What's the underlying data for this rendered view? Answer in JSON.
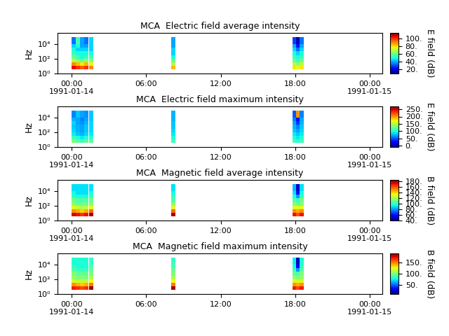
{
  "chart_data": [
    {
      "type": "heatmap",
      "title": "MCA  Electric field average intensity",
      "y_label": "Hz",
      "x": [
        "1991-01-14T00:00",
        "1991-01-14T00:20",
        "1991-01-14T00:40",
        "1991-01-14T01:00",
        "1991-01-14T01:20",
        "1991-01-14T01:25",
        "1991-01-14T01:45",
        "1991-01-14T08:00",
        "1991-01-14T08:20",
        "1991-01-14T17:45",
        "1991-01-14T18:05",
        "1991-01-14T18:20",
        "1991-01-14T18:40"
      ],
      "y": [
        4,
        10,
        32,
        100,
        316,
        1000,
        3162,
        10000,
        80000
      ],
      "xlim": [
        "1991-01-13T22:52",
        "1991-01-15T01:00"
      ],
      "xticks": [
        {
          "value": "1991-01-14T00:00",
          "label": "00:00\n1991-01-14"
        },
        {
          "value": "1991-01-14T06:00",
          "label": "06:00"
        },
        {
          "value": "1991-01-14T12:00",
          "label": "12:00"
        },
        {
          "value": "1991-01-14T18:00",
          "label": "18:00"
        },
        {
          "value": "1991-01-15T00:00",
          "label": "00:00\n1991-01-15"
        }
      ],
      "ylim": [
        1,
        300000
      ],
      "log": "y",
      "yticks": [
        {
          "value": 1,
          "label": "10⁰"
        },
        {
          "value": 100,
          "label": "10²"
        },
        {
          "value": 10000,
          "label": "10⁴"
        }
      ],
      "cells": [
        [
          105,
          100,
          95,
          100,
          null,
          90,
          null,
          85,
          null,
          80,
          75,
          80
        ],
        [
          90,
          85,
          80,
          85,
          null,
          75,
          null,
          70,
          null,
          70,
          65,
          70
        ],
        [
          70,
          65,
          60,
          65,
          null,
          65,
          null,
          60,
          null,
          60,
          55,
          60
        ],
        [
          60,
          55,
          50,
          55,
          null,
          55,
          null,
          50,
          null,
          55,
          50,
          55
        ],
        [
          55,
          50,
          50,
          50,
          null,
          50,
          null,
          45,
          null,
          50,
          45,
          50
        ],
        [
          50,
          45,
          45,
          45,
          null,
          45,
          null,
          45,
          null,
          45,
          35,
          45
        ],
        [
          45,
          50,
          40,
          40,
          null,
          45,
          null,
          40,
          null,
          40,
          25,
          40
        ],
        [
          35,
          55,
          40,
          35,
          null,
          45,
          null,
          40,
          null,
          30,
          15,
          35
        ]
      ],
      "colorbar_range": [
        10,
        115
      ],
      "colorbar_ticks": [
        {
          "value": 20,
          "label": "20."
        },
        {
          "value": 40,
          "label": "40."
        },
        {
          "value": 60,
          "label": "60."
        },
        {
          "value": 80,
          "label": "80."
        },
        {
          "value": 100,
          "label": "100."
        }
      ],
      "colorbar_label": "E field (dB)"
    },
    {
      "type": "heatmap",
      "title": "MCA  Electric field maximum intensity",
      "y_label": "Hz",
      "x": [
        "1991-01-14T00:00",
        "1991-01-14T00:20",
        "1991-01-14T00:40",
        "1991-01-14T01:00",
        "1991-01-14T01:20",
        "1991-01-14T01:25",
        "1991-01-14T01:45",
        "1991-01-14T08:00",
        "1991-01-14T08:20",
        "1991-01-14T17:45",
        "1991-01-14T18:05",
        "1991-01-14T18:20",
        "1991-01-14T18:40"
      ],
      "y": [
        4,
        10,
        32,
        100,
        316,
        1000,
        3162,
        10000,
        80000
      ],
      "xlim": [
        "1991-01-13T22:52",
        "1991-01-15T01:00"
      ],
      "xticks": [
        {
          "value": "1991-01-14T00:00",
          "label": "00:00\n1991-01-14"
        },
        {
          "value": "1991-01-14T06:00",
          "label": "06:00"
        },
        {
          "value": "1991-01-14T12:00",
          "label": "12:00"
        },
        {
          "value": "1991-01-14T18:00",
          "label": "18:00"
        },
        {
          "value": "1991-01-15T00:00",
          "label": "00:00\n1991-01-15"
        }
      ],
      "ylim": [
        1,
        300000
      ],
      "log": "y",
      "yticks": [
        {
          "value": 1,
          "label": "10⁰"
        },
        {
          "value": 100,
          "label": "10²"
        },
        {
          "value": 10000,
          "label": "10⁴"
        }
      ],
      "cells": [
        [
          130,
          120,
          110,
          120,
          null,
          120,
          null,
          110,
          null,
          110,
          100,
          110
        ],
        [
          110,
          100,
          90,
          100,
          null,
          100,
          null,
          100,
          null,
          100,
          90,
          100
        ],
        [
          90,
          80,
          75,
          85,
          null,
          90,
          null,
          90,
          null,
          90,
          80,
          90
        ],
        [
          85,
          75,
          70,
          80,
          null,
          85,
          null,
          85,
          null,
          80,
          70,
          85
        ],
        [
          80,
          75,
          70,
          80,
          null,
          85,
          null,
          80,
          null,
          75,
          60,
          80
        ],
        [
          85,
          70,
          65,
          75,
          null,
          85,
          null,
          80,
          null,
          70,
          40,
          75
        ],
        [
          75,
          70,
          60,
          70,
          null,
          80,
          null,
          75,
          null,
          60,
          30,
          70
        ],
        [
          60,
          80,
          70,
          65,
          null,
          80,
          null,
          75,
          null,
          50,
          200,
          60
        ]
      ],
      "colorbar_range": [
        -10,
        270
      ],
      "colorbar_ticks": [
        {
          "value": 0,
          "label": "0."
        },
        {
          "value": 50,
          "label": "50."
        },
        {
          "value": 100,
          "label": "100."
        },
        {
          "value": 150,
          "label": "150."
        },
        {
          "value": 200,
          "label": "200."
        },
        {
          "value": 250,
          "label": "250."
        }
      ],
      "colorbar_label": "E field (dB)"
    },
    {
      "type": "heatmap",
      "title": "MCA  Magnetic field average intensity",
      "y_label": "Hz",
      "x": [
        "1991-01-14T00:00",
        "1991-01-14T00:20",
        "1991-01-14T00:40",
        "1991-01-14T01:00",
        "1991-01-14T01:20",
        "1991-01-14T01:25",
        "1991-01-14T01:45",
        "1991-01-14T08:00",
        "1991-01-14T08:20",
        "1991-01-14T17:45",
        "1991-01-14T18:05",
        "1991-01-14T18:20",
        "1991-01-14T18:40"
      ],
      "y": [
        4,
        10,
        32,
        100,
        316,
        1000,
        3162,
        10000,
        80000
      ],
      "xlim": [
        "1991-01-13T22:52",
        "1991-01-15T01:00"
      ],
      "xticks": [
        {
          "value": "1991-01-14T00:00",
          "label": "00:00\n1991-01-14"
        },
        {
          "value": "1991-01-14T06:00",
          "label": "06:00"
        },
        {
          "value": "1991-01-14T12:00",
          "label": "12:00"
        },
        {
          "value": "1991-01-14T18:00",
          "label": "18:00"
        },
        {
          "value": "1991-01-15T00:00",
          "label": "00:00\n1991-01-15"
        }
      ],
      "ylim": [
        1,
        300000
      ],
      "log": "y",
      "yticks": [
        {
          "value": 1,
          "label": "10⁰"
        },
        {
          "value": 100,
          "label": "10²"
        },
        {
          "value": 10000,
          "label": "10⁴"
        }
      ],
      "cells": [
        [
          175,
          170,
          165,
          170,
          null,
          180,
          null,
          180,
          null,
          170,
          160,
          170
        ],
        [
          150,
          145,
          140,
          145,
          null,
          155,
          null,
          155,
          null,
          150,
          145,
          150
        ],
        [
          130,
          125,
          120,
          125,
          null,
          130,
          null,
          130,
          null,
          130,
          130,
          130
        ],
        [
          115,
          110,
          110,
          110,
          null,
          115,
          null,
          115,
          null,
          115,
          110,
          115
        ],
        [
          110,
          105,
          105,
          105,
          null,
          110,
          null,
          105,
          null,
          105,
          100,
          110
        ],
        [
          100,
          95,
          95,
          95,
          null,
          100,
          null,
          100,
          null,
          95,
          80,
          100
        ],
        [
          95,
          90,
          90,
          90,
          null,
          95,
          null,
          95,
          null,
          90,
          60,
          95
        ],
        [
          90,
          90,
          90,
          90,
          null,
          90,
          null,
          90,
          null,
          85,
          50,
          90
        ]
      ],
      "colorbar_range": [
        40,
        185
      ],
      "colorbar_ticks": [
        {
          "value": 40,
          "label": "40."
        },
        {
          "value": 60,
          "label": "60."
        },
        {
          "value": 80,
          "label": "80."
        },
        {
          "value": 100,
          "label": "100."
        },
        {
          "value": 120,
          "label": "120."
        },
        {
          "value": 140,
          "label": "140."
        },
        {
          "value": 160,
          "label": "160."
        },
        {
          "value": 180,
          "label": "180."
        }
      ],
      "colorbar_label": "B field (dB)"
    },
    {
      "type": "heatmap",
      "title": "MCA  Magnetic field maximum intensity",
      "y_label": "Hz",
      "x": [
        "1991-01-14T00:00",
        "1991-01-14T00:20",
        "1991-01-14T00:40",
        "1991-01-14T01:00",
        "1991-01-14T01:20",
        "1991-01-14T01:25",
        "1991-01-14T01:45",
        "1991-01-14T08:00",
        "1991-01-14T08:20",
        "1991-01-14T17:45",
        "1991-01-14T18:05",
        "1991-01-14T18:20",
        "1991-01-14T18:40"
      ],
      "y": [
        4,
        10,
        32,
        100,
        316,
        1000,
        3162,
        10000,
        80000
      ],
      "xlim": [
        "1991-01-13T22:52",
        "1991-01-15T01:00"
      ],
      "xticks": [
        {
          "value": "1991-01-14T00:00",
          "label": "00:00\n1991-01-14"
        },
        {
          "value": "1991-01-14T06:00",
          "label": "06:00"
        },
        {
          "value": "1991-01-14T12:00",
          "label": "12:00"
        },
        {
          "value": "1991-01-14T18:00",
          "label": "18:00"
        },
        {
          "value": "1991-01-15T00:00",
          "label": "00:00\n1991-01-15"
        }
      ],
      "ylim": [
        1,
        300000
      ],
      "log": "y",
      "yticks": [
        {
          "value": 1,
          "label": "10⁰"
        },
        {
          "value": 100,
          "label": "10²"
        },
        {
          "value": 10000,
          "label": "10⁴"
        }
      ],
      "cells": [
        [
          170,
          165,
          160,
          165,
          null,
          185,
          null,
          185,
          null,
          170,
          160,
          170
        ],
        [
          145,
          140,
          135,
          140,
          null,
          150,
          null,
          150,
          null,
          145,
          140,
          145
        ],
        [
          120,
          115,
          115,
          115,
          null,
          125,
          null,
          125,
          null,
          120,
          120,
          120
        ],
        [
          105,
          100,
          100,
          100,
          null,
          110,
          null,
          110,
          null,
          105,
          100,
          105
        ],
        [
          100,
          95,
          95,
          95,
          null,
          100,
          null,
          100,
          null,
          95,
          90,
          100
        ],
        [
          90,
          85,
          85,
          85,
          null,
          95,
          null,
          95,
          null,
          85,
          60,
          90
        ],
        [
          85,
          80,
          80,
          80,
          null,
          90,
          null,
          90,
          null,
          80,
          30,
          85
        ],
        [
          80,
          80,
          80,
          80,
          null,
          85,
          null,
          85,
          null,
          75,
          20,
          80
        ]
      ],
      "colorbar_range": [
        10,
        190
      ],
      "colorbar_ticks": [
        {
          "value": 50,
          "label": "50."
        },
        {
          "value": 100,
          "label": "100."
        },
        {
          "value": 150,
          "label": "150."
        }
      ],
      "colorbar_label": "B field (dB)"
    }
  ]
}
